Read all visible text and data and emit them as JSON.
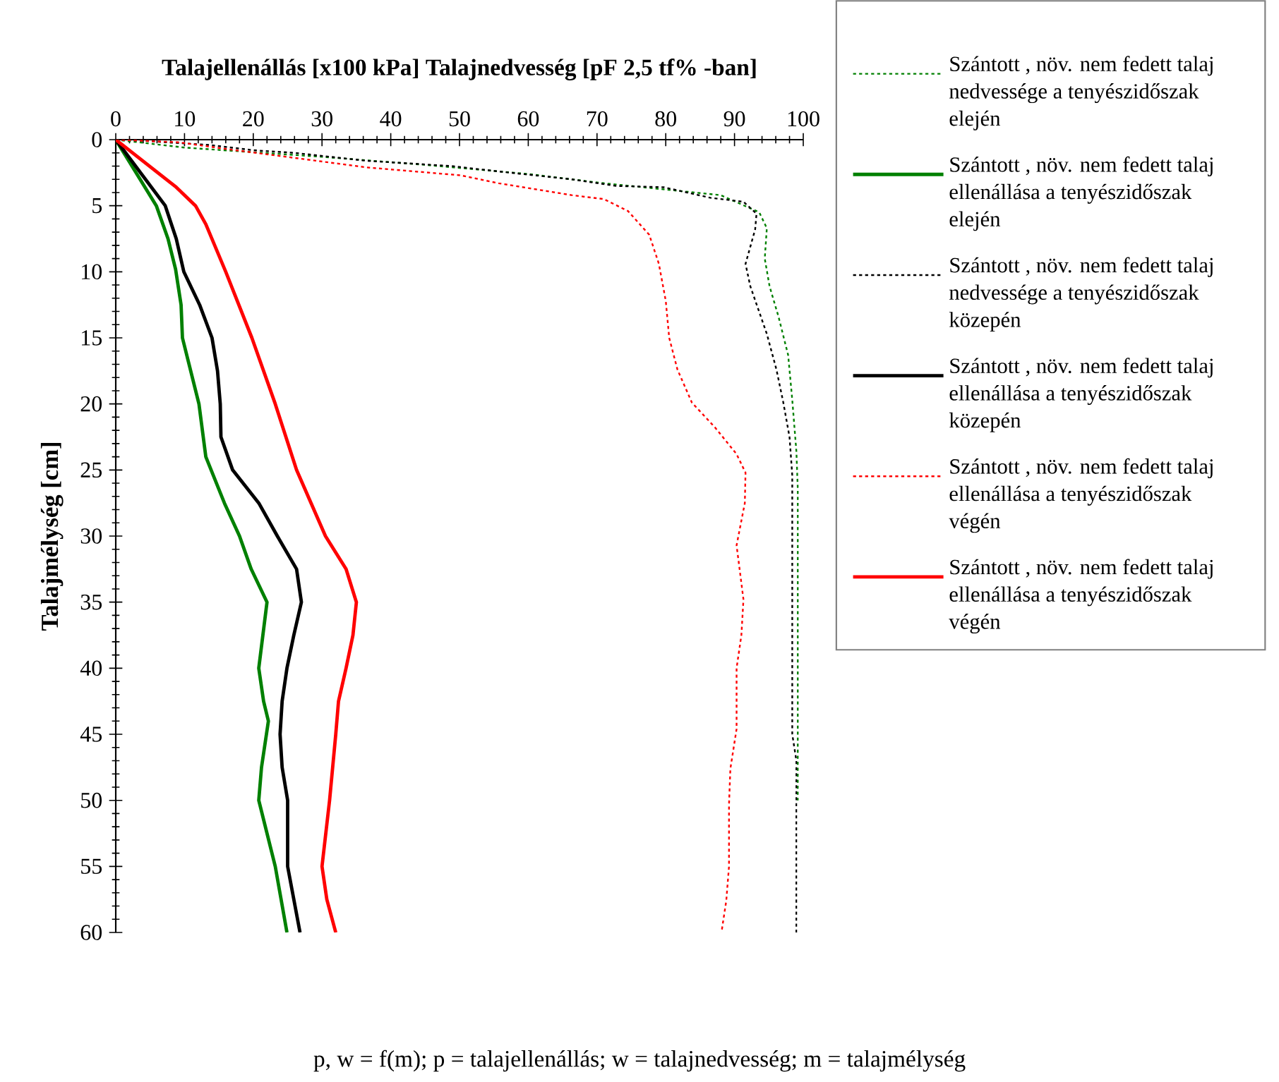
{
  "chart_data": {
    "type": "line",
    "title": "Talajellenállás [x100 kPa] Talajnedvesség [pF 2,5 tf% -ban]",
    "ylabel": "Talajmélység [cm]",
    "xlim": [
      0,
      100
    ],
    "xticks": [
      0,
      10,
      20,
      30,
      40,
      50,
      60,
      70,
      80,
      90,
      100
    ],
    "ylim": [
      60,
      0
    ],
    "yticks": [
      0,
      5,
      10,
      15,
      20,
      25,
      30,
      35,
      40,
      45,
      50,
      55,
      60
    ],
    "legend": "right",
    "marker": "none",
    "annotations": [
      "p, w = f(m); p = talajellenállás; w = talajnedvesség; m = talajmélység"
    ],
    "series": [
      {
        "name": "Szántott , növ. nem fedett talaj nedvessége a tenyészidőszak elején",
        "color": "#008000",
        "line_style": "dotted",
        "x": [
          0,
          10,
          30,
          44.8,
          60,
          71,
          88,
          93.6,
          94.7,
          94.4,
          95.1,
          96.4,
          97.8,
          98.4,
          99.0,
          99.2,
          99.2
        ],
        "values": [
          0,
          0.6,
          1.3,
          1.9,
          2.6,
          3.3,
          4.2,
          5.5,
          6.7,
          9.0,
          11.1,
          13.4,
          16.3,
          19.7,
          23.6,
          26.4,
          50
        ]
      },
      {
        "name": "Szántott , növ. nem fedett talaj ellenállása a tenyészidőszak elején",
        "color": "#008000",
        "line_style": "solid",
        "x": [
          0,
          5.9,
          7.6,
          8.7,
          9.5,
          9.7,
          12.1,
          13.1,
          15.8,
          18,
          19.7,
          22.0,
          20.8,
          21.5,
          22.2,
          21.2,
          20.8,
          23.2,
          24.9
        ],
        "values": [
          0,
          5,
          7.5,
          9.8,
          12.5,
          15,
          20,
          24,
          27.5,
          30,
          32.5,
          35,
          40,
          42.5,
          44,
          47.5,
          50,
          55,
          60
        ]
      },
      {
        "name": "Szántott , növ. nem fedett talaj nedvessége a tenyészidőszak közepén",
        "color": "#000000",
        "line_style": "dotted",
        "x": [
          0,
          4.4,
          13.6,
          20,
          26,
          36.5,
          48.9,
          55.6,
          66.3,
          72.8,
          79.7,
          86.5,
          91.3,
          93.2,
          93,
          91.6,
          92.3,
          94.7,
          96.1,
          97.1,
          98.0,
          98.4,
          98.4,
          99.0,
          99.0
        ],
        "values": [
          0,
          0.1,
          0.4,
          0.8,
          1,
          1.6,
          2.0,
          2.4,
          3.0,
          3.5,
          3.6,
          4.4,
          4.7,
          5.6,
          6.8,
          9.4,
          11.1,
          14.7,
          17.4,
          19.9,
          22.5,
          25.4,
          45,
          47,
          60
        ]
      },
      {
        "name": "Szántott , növ. nem fedett talaj ellenállása a tenyészidőszak közepén",
        "color": "#000000",
        "line_style": "solid",
        "x": [
          0,
          7.2,
          8.8,
          9.9,
          12.2,
          14.0,
          14.8,
          15.2,
          15.3,
          17.0,
          20.8,
          23.5,
          26.3,
          27.0,
          25.9,
          24.9,
          24.2,
          23.9,
          24.2,
          25.0,
          25.0,
          26.8
        ],
        "values": [
          0,
          5,
          7.5,
          10,
          12.5,
          15,
          17.5,
          20,
          22.5,
          25,
          27.5,
          30,
          32.5,
          35,
          37.5,
          40,
          42.5,
          45,
          47.5,
          50,
          55,
          60
        ]
      },
      {
        "name": "Szántott , növ. nem fedett talaj ellenállása a tenyészidőszak végén",
        "color": "#ff0000",
        "line_style": "dotted",
        "x": [
          0,
          9.2,
          16,
          26.3,
          36.5,
          50.2,
          55.7,
          66.3,
          71,
          74.5,
          77.6,
          79,
          80,
          80.5,
          81.7,
          83.8,
          87.2,
          90.3,
          91.6,
          91.5,
          90.3,
          91.3,
          91,
          90.3,
          90.3,
          89.4,
          89.2,
          89.2,
          88.8,
          88.1
        ],
        "values": [
          0,
          0.2,
          0.7,
          1.4,
          2.1,
          2.7,
          3.3,
          4.2,
          4.5,
          5.4,
          7.2,
          9.4,
          12.2,
          15,
          17.4,
          19.9,
          21.8,
          23.8,
          25.2,
          27.5,
          30.7,
          34.8,
          37.5,
          40,
          44.6,
          47.6,
          50.3,
          55,
          57.6,
          60
        ]
      },
      {
        "name": "Szántott , növ. nem fedett talaj ellenállása a tenyészidőszak végén",
        "color": "#ff0000",
        "line_style": "solid",
        "x": [
          0,
          8.8,
          11.6,
          13.1,
          16.0,
          19.8,
          23.2,
          26.3,
          30.5,
          33.5,
          35.0,
          34.5,
          33.5,
          32.4,
          32.0,
          31.1,
          30.0,
          30.7,
          32.0
        ],
        "values": [
          0,
          3.6,
          5,
          6.4,
          10,
          15,
          20,
          25,
          30,
          32.5,
          35,
          37.5,
          40,
          42.5,
          45,
          50,
          55,
          57.5,
          60
        ]
      }
    ]
  }
}
